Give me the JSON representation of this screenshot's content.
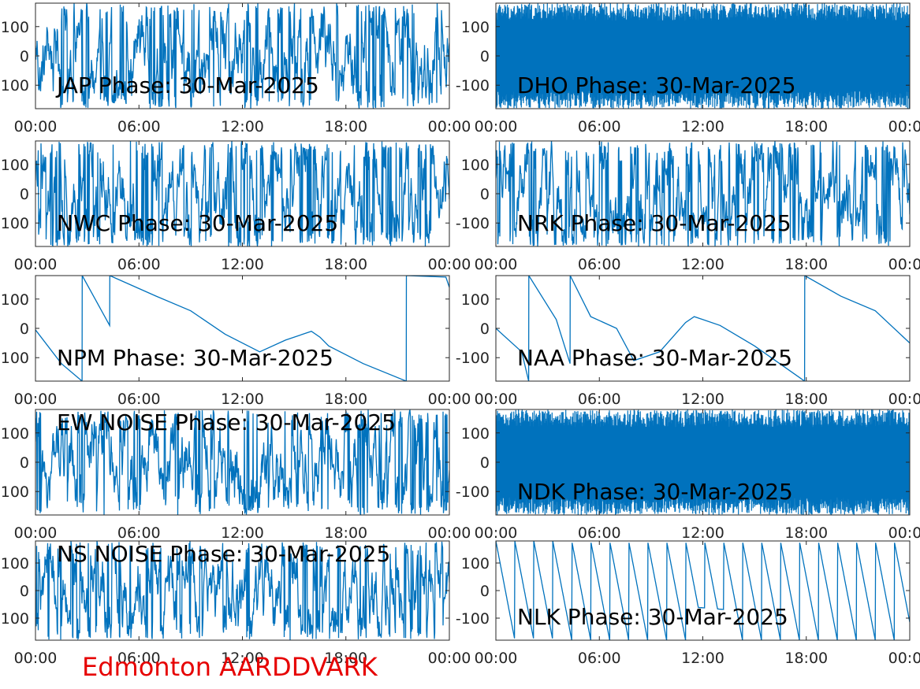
{
  "station_label": "Edmonton AARDDVARK",
  "colors": {
    "trace": "#0072bd",
    "axes": "#262626",
    "station_label": "#e60000"
  },
  "chart_data": [
    {
      "type": "line",
      "title": "JAP Phase: 30-Mar-2025",
      "ylim": [
        -180,
        180
      ],
      "yticks": [
        "100",
        "0",
        "100"
      ],
      "xticks": [
        "00:00",
        "06:00",
        "12:00",
        "18:00",
        "00:00"
      ],
      "pattern": "noisy",
      "title_position": "bottom",
      "series": []
    },
    {
      "type": "line",
      "title": "DHO Phase: 30-Mar-2025",
      "ylim": [
        -180,
        180
      ],
      "yticks": [
        "100",
        "0",
        "-100"
      ],
      "xticks": [
        "00:00",
        "06:00",
        "12:00",
        "18:00",
        "00:00"
      ],
      "pattern": "dense",
      "title_position": "bottom",
      "series": []
    },
    {
      "type": "line",
      "title": "NWC Phase: 30-Mar-2025",
      "ylim": [
        -180,
        180
      ],
      "yticks": [
        "100",
        "0",
        "100"
      ],
      "xticks": [
        "00:00",
        "06:00",
        "12:00",
        "18:00",
        "00:00"
      ],
      "pattern": "noisy",
      "title_position": "bottom",
      "series": []
    },
    {
      "type": "line",
      "title": "NRK Phase: 30-Mar-2025",
      "ylim": [
        -180,
        180
      ],
      "yticks": [
        "100",
        "0",
        "-100"
      ],
      "xticks": [
        "00:00",
        "06:00",
        "12:00",
        "18:00",
        "00:00"
      ],
      "pattern": "noisy",
      "title_position": "bottom",
      "series": []
    },
    {
      "type": "line",
      "title": "NPM Phase: 30-Mar-2025",
      "ylim": [
        -180,
        180
      ],
      "yticks": [
        "100",
        "0",
        "100"
      ],
      "xticks": [
        "00:00",
        "06:00",
        "12:00",
        "18:00",
        "00:00"
      ],
      "pattern": "smooth",
      "title_position": "bottom",
      "series": [
        {
          "x": [
            0,
            1.5,
            2.7,
            2.71,
            4.3,
            4.31,
            7,
            9,
            11,
            13,
            14.5,
            16,
            16.5,
            17,
            19,
            21.5,
            21.51,
            23.8,
            24
          ],
          "y": [
            -5,
            -120,
            -180,
            180,
            10,
            180,
            110,
            60,
            -20,
            -80,
            -40,
            -10,
            -30,
            -60,
            -120,
            -180,
            180,
            175,
            140
          ]
        }
      ]
    },
    {
      "type": "line",
      "title": "NAA Phase: 30-Mar-2025",
      "ylim": [
        -180,
        180
      ],
      "yticks": [
        "100",
        "0",
        "-100"
      ],
      "xticks": [
        "00:00",
        "06:00",
        "12:00",
        "18:00",
        "00:00"
      ],
      "pattern": "smooth",
      "title_position": "bottom",
      "series": [
        {
          "x": [
            0,
            1.5,
            1.9,
            1.91,
            3.5,
            4.3,
            4.31,
            5.5,
            7,
            8,
            9.5,
            11,
            11.5,
            13,
            15,
            17.9,
            17.91,
            20,
            22,
            24
          ],
          "y": [
            0,
            -80,
            -180,
            180,
            30,
            -120,
            180,
            40,
            0,
            -110,
            -80,
            20,
            40,
            10,
            -60,
            -180,
            180,
            110,
            60,
            -50
          ]
        }
      ]
    },
    {
      "type": "line",
      "title": "EW NOISE Phase: 30-Mar-2025",
      "ylim": [
        -180,
        180
      ],
      "yticks": [
        "100",
        "0",
        "100"
      ],
      "xticks": [
        "00:00",
        "06:00",
        "12:00",
        "18:00",
        "00:00"
      ],
      "pattern": "noisy",
      "title_position": "top",
      "series": []
    },
    {
      "type": "line",
      "title": "NDK Phase: 30-Mar-2025",
      "ylim": [
        -180,
        180
      ],
      "yticks": [
        "100",
        "0",
        "-100"
      ],
      "xticks": [
        "00:00",
        "06:00",
        "12:00",
        "18:00",
        "00:00"
      ],
      "pattern": "dense",
      "title_position": "bottom",
      "series": []
    },
    {
      "type": "line",
      "title": "NS NOISE Phase: 30-Mar-2025",
      "ylim": [
        -180,
        180
      ],
      "yticks": [
        "100",
        "0",
        "100"
      ],
      "xticks": [
        "00:00",
        "06:00",
        "12:00",
        "18:00",
        "00:00"
      ],
      "pattern": "noisy",
      "title_position": "top",
      "series": []
    },
    {
      "type": "line",
      "title": "NLK Phase: 30-Mar-2025",
      "ylim": [
        -180,
        180
      ],
      "yticks": [
        "100",
        "0",
        "-100"
      ],
      "xticks": [
        "00:00",
        "06:00",
        "12:00",
        "18:00",
        "00:00"
      ],
      "pattern": "sawtooth",
      "title_position": "bottom",
      "series": []
    }
  ]
}
